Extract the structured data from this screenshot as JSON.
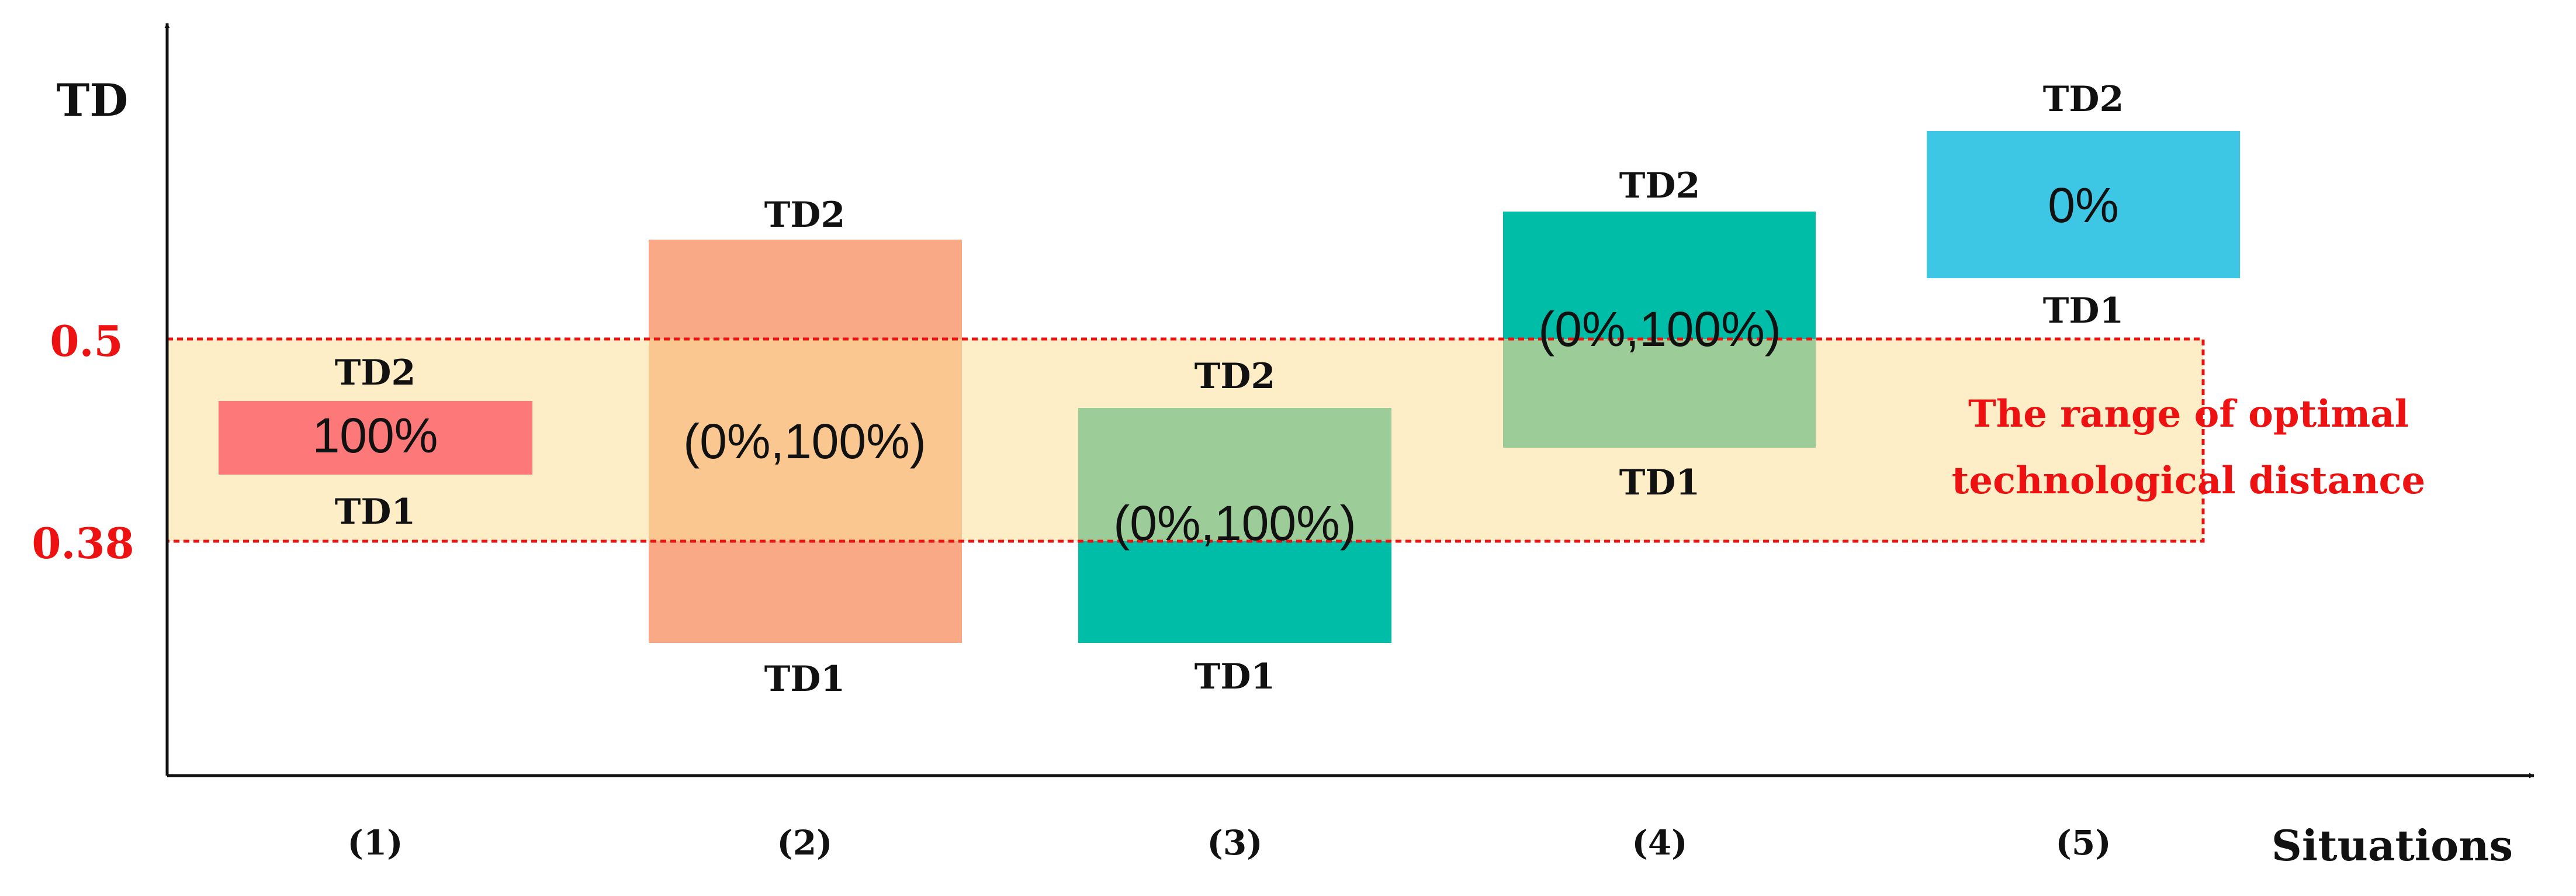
{
  "axes": {
    "y_title": "TD",
    "x_title": "Situations",
    "y_marks": [
      "0.5",
      "0.38"
    ]
  },
  "optimal_range": {
    "lower": 0.38,
    "upper": 0.5,
    "label_line1": "The range of optimal",
    "label_line2": "technological distance"
  },
  "colors": {
    "axis": "#111111",
    "range_fill": "#fdeec7",
    "range_border": "#ee1111",
    "red_box": "#fd7878",
    "orange_box": "#f9a985",
    "orange_overlap": "#f9c78f",
    "green_box": "#9ccc98",
    "teal_box": "#00bda8",
    "cyan_box": "#3ec7e4"
  },
  "situations": [
    {
      "id": "(1)",
      "td1_label": "TD1",
      "td2_label": "TD2",
      "value_text": "100%"
    },
    {
      "id": "(2)",
      "td1_label": "TD1",
      "td2_label": "TD2",
      "value_text": "(0%,100%)"
    },
    {
      "id": "(3)",
      "td1_label": "TD1",
      "td2_label": "TD2",
      "value_text": "(0%,100%)"
    },
    {
      "id": "(4)",
      "td1_label": "TD1",
      "td2_label": "TD2",
      "value_text": "(0%,100%)"
    },
    {
      "id": "(5)",
      "td1_label": "TD1",
      "td2_label": "TD2",
      "value_text": "0%"
    }
  ]
}
